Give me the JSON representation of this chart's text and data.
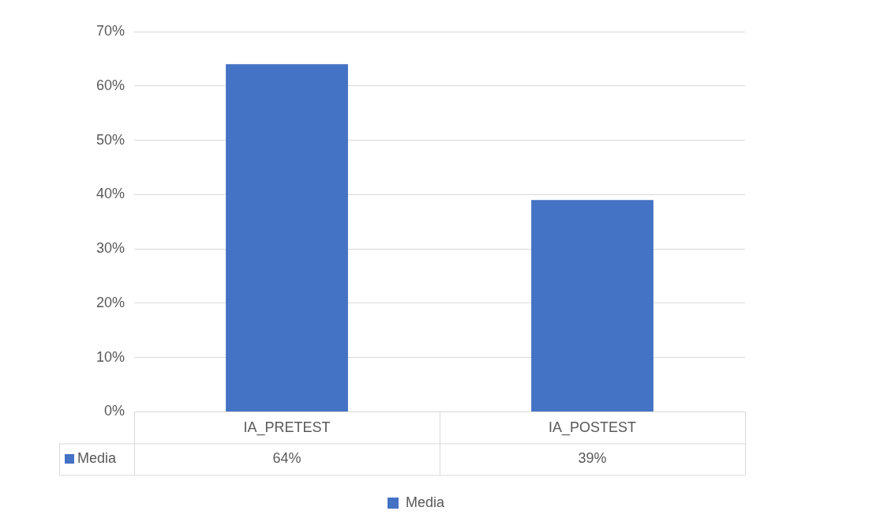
{
  "chart_data": {
    "type": "bar",
    "categories": [
      "IA_PRETEST",
      "IA_POSTEST"
    ],
    "series": [
      {
        "name": "Media",
        "color": "#4472c4",
        "values": [
          64,
          39
        ],
        "value_labels": [
          "64%",
          "39%"
        ]
      }
    ],
    "ylim": [
      0,
      70
    ],
    "yticks": [
      {
        "value": 0,
        "label": "0%"
      },
      {
        "value": 10,
        "label": "10%"
      },
      {
        "value": 20,
        "label": "20%"
      },
      {
        "value": 30,
        "label": "30%"
      },
      {
        "value": 40,
        "label": "40%"
      },
      {
        "value": 50,
        "label": "50%"
      },
      {
        "value": 60,
        "label": "60%"
      },
      {
        "value": 70,
        "label": "70%"
      }
    ],
    "grid": "y",
    "legend": "bottom"
  }
}
